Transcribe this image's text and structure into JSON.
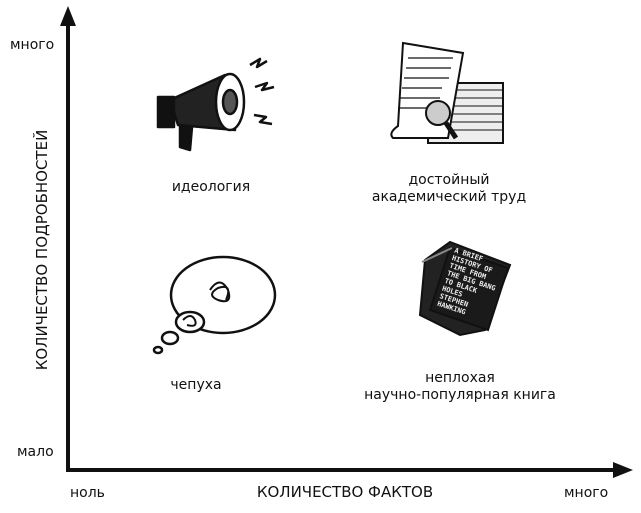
{
  "axes": {
    "y_label": "КОЛИЧЕСТВО ПОДРОБНОСТЕЙ",
    "y_high": "много",
    "y_low": "мало",
    "x_label": "КОЛИЧЕСТВО ФАКТОВ",
    "x_low": "ноль",
    "x_high": "много"
  },
  "quadrants": {
    "top_left": {
      "label": "идеология",
      "icon": "megaphone-icon"
    },
    "top_right": {
      "label_1": "достойный",
      "label_2": "академический труд",
      "icon": "document-stack-magnifier-icon"
    },
    "bottom_left": {
      "label": "чепуха",
      "icon": "thought-bubble-scribble-icon"
    },
    "bottom_right": {
      "label_1": "неплохая",
      "label_2": "научно-популярная книга",
      "icon": "book-icon",
      "book_lettering": "A BRIEF HISTORY OF TIME FROM THE BIG BANG TO BLACK HOLES STEPHEN HAWKING"
    }
  }
}
